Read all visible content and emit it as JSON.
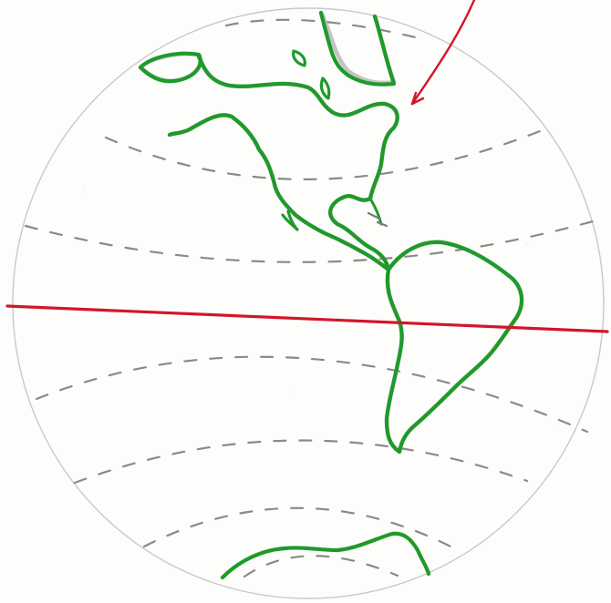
{
  "drawing": {
    "colors": {
      "background": "#fdfdfc",
      "globe_outline": "#c9c9c9",
      "latitude_lines": "#8a8a8a",
      "coastline_green": "#1f9a2a",
      "coastline_shadow": "#8c8c8c",
      "equator_red": "#d3152a",
      "arrow_red": "#d3152a"
    },
    "elements": {
      "globe": "globe-outline",
      "latitude": "dashed-latitude-lines",
      "north_america": "north-america-coastline",
      "south_america": "south-america-coastline",
      "antarctica": "antarctica-coastline",
      "greenland": "greenland-coastline",
      "equator": "equator-line",
      "arrow": "pointer-arrow"
    }
  }
}
